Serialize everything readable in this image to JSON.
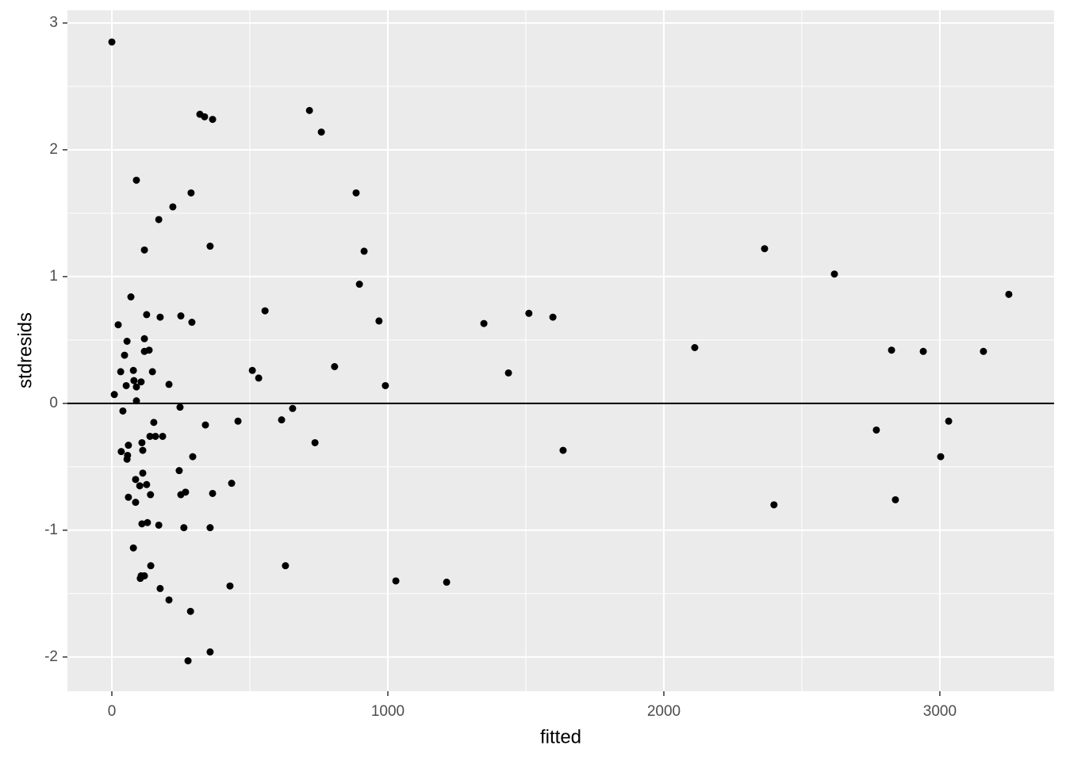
{
  "chart_data": {
    "type": "scatter",
    "x_label": "fitted",
    "y_label": "stdresids",
    "x": [
      0,
      9,
      23,
      32,
      34,
      40,
      46,
      52,
      55,
      55,
      57,
      60,
      60,
      69,
      78,
      78,
      80,
      86,
      86,
      89,
      89,
      89,
      101,
      106,
      106,
      103,
      109,
      109,
      112,
      112,
      118,
      118,
      118,
      118,
      126,
      126,
      129,
      135,
      138,
      140,
      141,
      147,
      152,
      158,
      170,
      170,
      175,
      175,
      184,
      207,
      207,
      221,
      244,
      247,
      250,
      250,
      261,
      267,
      276,
      285,
      287,
      290,
      293,
      319,
      336,
      339,
      356,
      356,
      356,
      365,
      365,
      428,
      434,
      457,
      509,
      532,
      555,
      615,
      629,
      655,
      716,
      736,
      759,
      807,
      885,
      897,
      914,
      968,
      991,
      1029,
      1213,
      1348,
      1437,
      1511,
      1598,
      1635,
      2112,
      2365,
      2399,
      2618,
      2770,
      2825,
      2839,
      2940,
      3003,
      3032,
      3158,
      3250
    ],
    "values": [
      2.85,
      0.07,
      0.62,
      0.25,
      -0.38,
      -0.06,
      0.38,
      0.14,
      0.49,
      -0.44,
      -0.41,
      -0.33,
      -0.74,
      0.84,
      0.26,
      -1.14,
      0.18,
      -0.6,
      -0.78,
      1.76,
      0.02,
      0.13,
      -0.65,
      0.17,
      -1.36,
      -1.38,
      -0.95,
      -0.31,
      -0.55,
      -0.37,
      1.21,
      0.51,
      0.41,
      -1.36,
      0.7,
      -0.64,
      -0.94,
      0.42,
      -0.26,
      -0.72,
      -1.28,
      0.25,
      -0.15,
      -0.26,
      1.45,
      -0.96,
      -1.46,
      0.68,
      -0.26,
      0.15,
      -1.55,
      1.55,
      -0.53,
      -0.03,
      0.69,
      -0.72,
      -0.98,
      -0.7,
      -2.03,
      -1.64,
      1.66,
      0.64,
      -0.42,
      2.28,
      2.26,
      -0.17,
      -1.96,
      1.24,
      -0.98,
      2.24,
      -0.71,
      -1.44,
      -0.63,
      -0.14,
      0.26,
      0.2,
      0.73,
      -0.13,
      -1.28,
      -0.04,
      2.31,
      -0.31,
      2.14,
      0.29,
      1.66,
      0.94,
      1.2,
      0.65,
      0.14,
      -1.4,
      -1.41,
      0.63,
      0.24,
      0.71,
      0.68,
      -0.37,
      0.44,
      1.22,
      -0.8,
      1.02,
      -0.21,
      0.42,
      -0.76,
      0.41,
      -0.42,
      -0.14,
      0.41,
      0.86
    ],
    "color": "#000000",
    "xlim": [
      -161,
      3414
    ],
    "ylim": [
      -2.27,
      3.1
    ],
    "xticks": [
      0,
      1000,
      2000,
      3000
    ],
    "yticks": [
      -2,
      -1,
      0,
      1,
      2,
      3
    ],
    "x_minor_ticks": [
      500,
      1500,
      2500
    ],
    "y_minor_ticks": [
      -1.5,
      -0.5,
      0.5,
      1.5,
      2.5
    ],
    "hline": 0,
    "grid": true
  }
}
